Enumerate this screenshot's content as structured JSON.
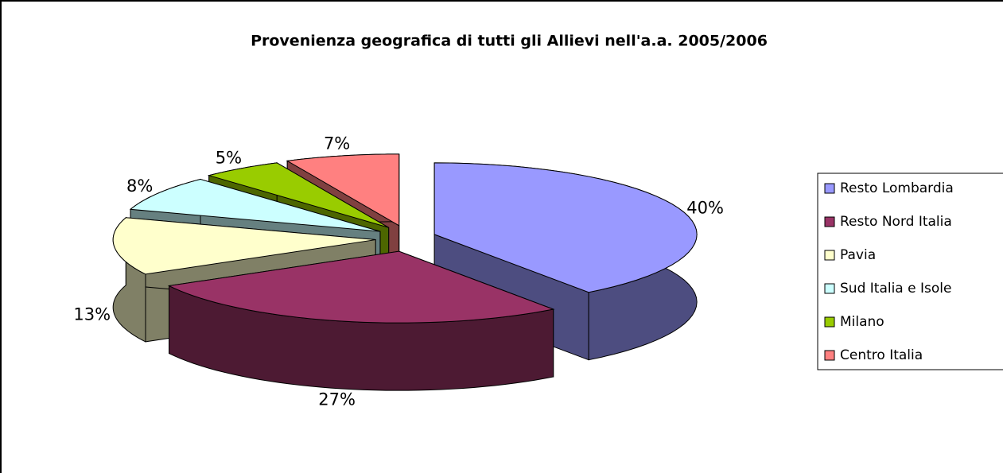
{
  "chart_data": {
    "type": "pie",
    "title": "Provenienza geografica di tutti gli Allievi nell'a.a. 2005/2006",
    "categories": [
      "Resto Lombardia",
      "Resto Nord Italia",
      "Pavia",
      "Sud Italia e Isole",
      "Milano",
      "Centro Italia"
    ],
    "values": [
      40,
      27,
      13,
      8,
      5,
      7
    ],
    "value_labels": [
      "40%",
      "27%",
      "13%",
      "8%",
      "5%",
      "7%"
    ],
    "colors": [
      "#9999ff",
      "#993366",
      "#ffffcc",
      "#ccffff",
      "#99cc00",
      "#ff8080"
    ],
    "legend": "right"
  }
}
